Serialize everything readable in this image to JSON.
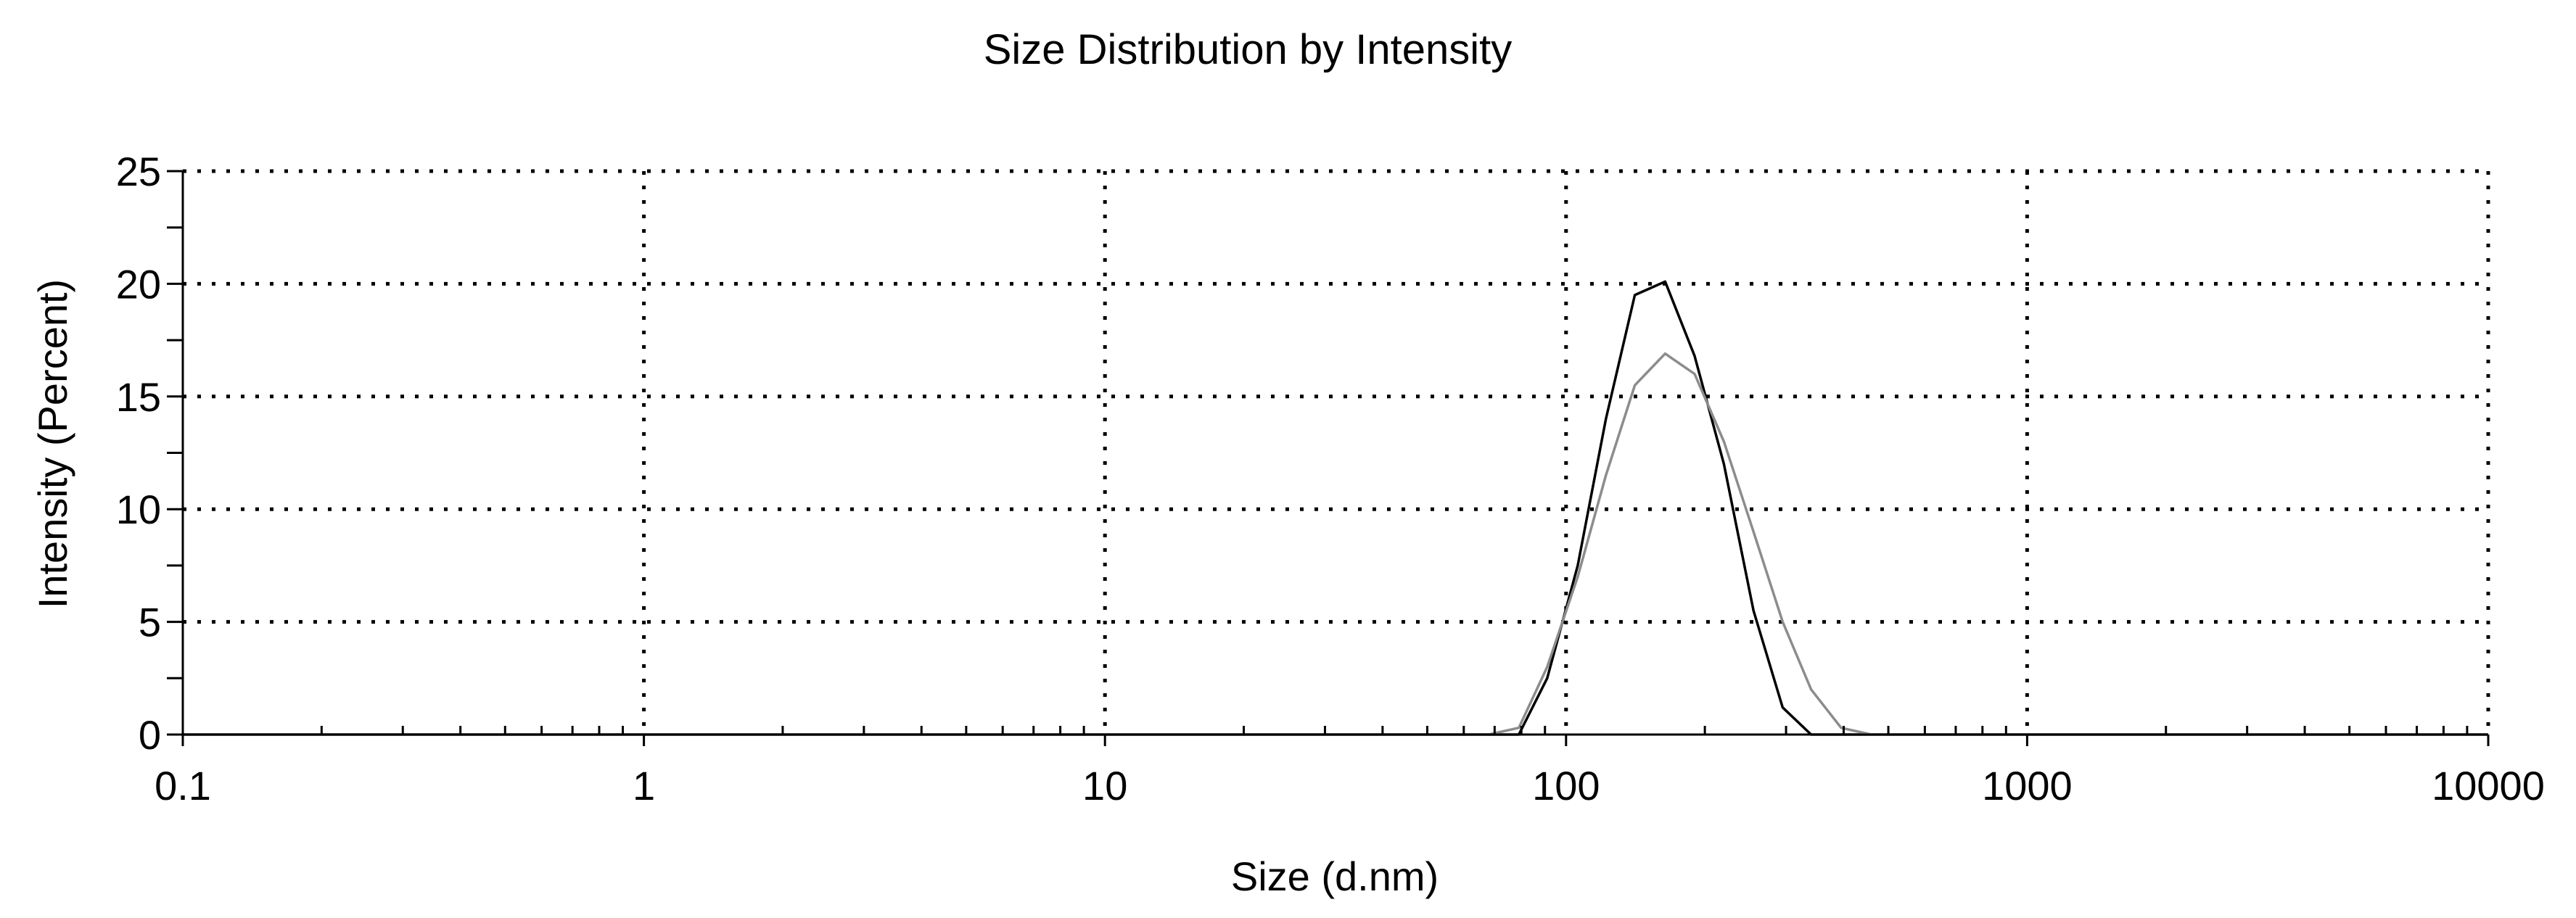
{
  "chart_data": {
    "type": "line",
    "title": "Size Distribution by Intensity",
    "xlabel": "Size (d.nm)",
    "ylabel": "Intensity (Percent)",
    "x_scale": "log",
    "xlim": [
      0.1,
      10000
    ],
    "ylim": [
      0,
      25
    ],
    "x_ticks": [
      0.1,
      1,
      10,
      100,
      1000,
      10000
    ],
    "x_tick_labels": [
      "0.1",
      "1",
      "10",
      "100",
      "1000",
      "10000"
    ],
    "y_ticks": [
      0,
      5,
      10,
      15,
      20,
      25
    ],
    "y_tick_labels": [
      "0",
      "5",
      "10",
      "15",
      "20",
      "25"
    ],
    "grid": true,
    "grid_style": "dotted",
    "legend": "none",
    "series": [
      {
        "color": "#000000",
        "points": [
          [
            0.1,
            0
          ],
          [
            0.4,
            0
          ],
          [
            79,
            0
          ],
          [
            91,
            2.5
          ],
          [
            106,
            7.5
          ],
          [
            122,
            14
          ],
          [
            141,
            19.5
          ],
          [
            164,
            20.1
          ],
          [
            190,
            16.8
          ],
          [
            220,
            12
          ],
          [
            255,
            5.5
          ],
          [
            295,
            1.2
          ],
          [
            340,
            0
          ],
          [
            10000,
            0
          ]
        ]
      },
      {
        "color": "#8c8c8c",
        "points": [
          [
            0.1,
            0
          ],
          [
            0.4,
            0
          ],
          [
            68,
            0
          ],
          [
            79,
            0.3
          ],
          [
            91,
            3
          ],
          [
            106,
            7
          ],
          [
            122,
            11.5
          ],
          [
            141,
            15.5
          ],
          [
            164,
            16.9
          ],
          [
            190,
            16
          ],
          [
            220,
            13
          ],
          [
            255,
            9
          ],
          [
            295,
            5
          ],
          [
            340,
            2
          ],
          [
            395,
            0.3
          ],
          [
            459,
            0
          ],
          [
            10000,
            0
          ]
        ]
      }
    ]
  }
}
